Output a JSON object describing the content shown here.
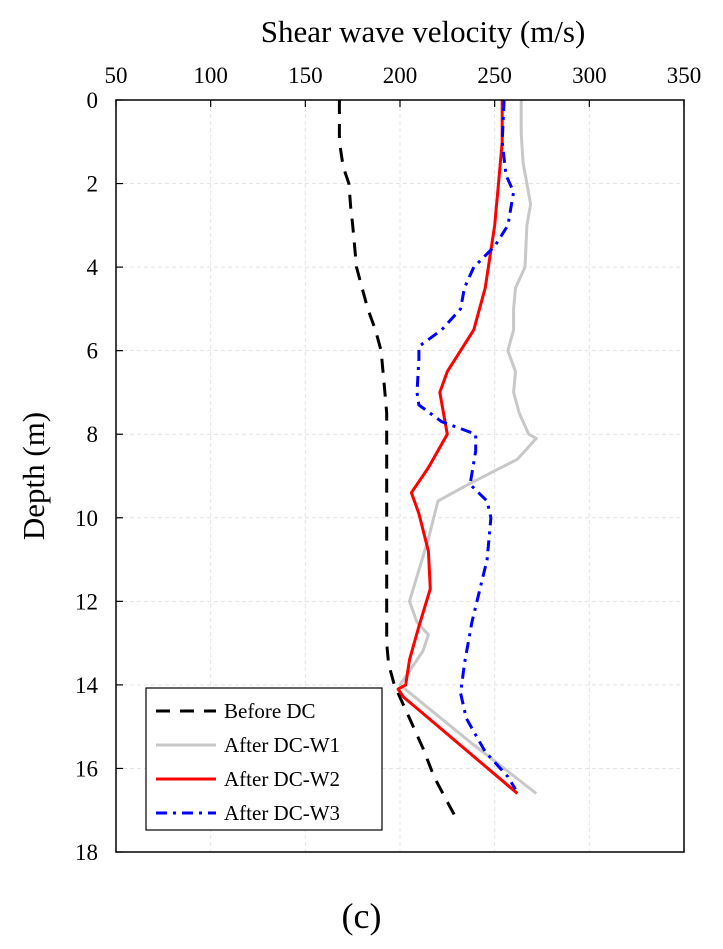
{
  "chart_data": {
    "type": "line",
    "title": "",
    "xlabel": "Shear wave velocity (m/s)",
    "ylabel": "Depth (m)",
    "xlim": [
      50,
      350
    ],
    "ylim": [
      0,
      18
    ],
    "y_inverted": true,
    "x_axis_position": "top",
    "x_ticks": [
      50,
      100,
      150,
      200,
      250,
      300,
      350
    ],
    "y_ticks": [
      0,
      2,
      4,
      6,
      8,
      10,
      12,
      14,
      16,
      18
    ],
    "grid": true,
    "legend_position": "bottom-left",
    "panel_label": "(c)",
    "series": [
      {
        "name": "Before DC",
        "color": "#000000",
        "dash": "dash",
        "x": [
          168,
          168,
          170,
          173,
          174,
          175,
          177,
          180,
          183,
          187,
          190,
          191,
          192,
          193,
          193,
          193,
          193,
          193,
          193,
          193,
          194,
          197,
          200,
          205,
          212,
          218,
          225,
          231
        ],
        "y": [
          0,
          1,
          1.6,
          2,
          2.6,
          3,
          4,
          4.5,
          5,
          5.5,
          6,
          6.5,
          7,
          7.5,
          8,
          9,
          10,
          11,
          12,
          13,
          13.5,
          14,
          14.3,
          14.8,
          15.5,
          16.2,
          16.8,
          17.3
        ]
      },
      {
        "name": "After DC-W1",
        "color": "#c8c8c8",
        "dash": "solid",
        "x": [
          264,
          264,
          265,
          267,
          269,
          267,
          266,
          261,
          260,
          260,
          257,
          261,
          260,
          263,
          268,
          272,
          262,
          236,
          220,
          215,
          205,
          209,
          215,
          212,
          200,
          238,
          272
        ],
        "y": [
          0,
          0.8,
          1.5,
          2,
          2.5,
          3,
          4,
          4.5,
          5,
          5.5,
          6,
          6.5,
          7,
          7.5,
          8,
          8.1,
          8.6,
          9.2,
          9.6,
          10.5,
          12,
          12.5,
          12.8,
          13.2,
          14,
          15.4,
          16.6
        ]
      },
      {
        "name": "After DC-W2",
        "color": "#ff0000",
        "dash": "solid",
        "x": [
          254,
          254,
          252,
          250,
          245,
          239,
          225,
          221,
          225,
          215,
          206,
          210,
          215,
          216,
          210,
          205,
          203,
          199,
          202,
          210,
          262
        ],
        "y": [
          0,
          1,
          2,
          3,
          4.5,
          5.5,
          6.5,
          7,
          8,
          8.8,
          9.4,
          9.9,
          10.8,
          11.7,
          12.6,
          13.4,
          14,
          14.1,
          14.3,
          14.6,
          16.6
        ]
      },
      {
        "name": "After DC-W3",
        "color": "#0000ff",
        "dash": "dashdot",
        "x": [
          255,
          254,
          256,
          260,
          257,
          250,
          239,
          234,
          232,
          222,
          210,
          210,
          209,
          210,
          222,
          240,
          240,
          237,
          246,
          248,
          246,
          238,
          234,
          232,
          235,
          245,
          257,
          261
        ],
        "y": [
          0,
          1,
          1.8,
          2.2,
          3,
          3.5,
          4,
          4.5,
          5,
          5.5,
          5.9,
          6.2,
          7,
          7.3,
          7.7,
          8,
          8.4,
          9.2,
          9.6,
          10,
          11,
          12.5,
          13.5,
          14.2,
          14.8,
          15.6,
          16.2,
          16.5
        ]
      }
    ]
  }
}
